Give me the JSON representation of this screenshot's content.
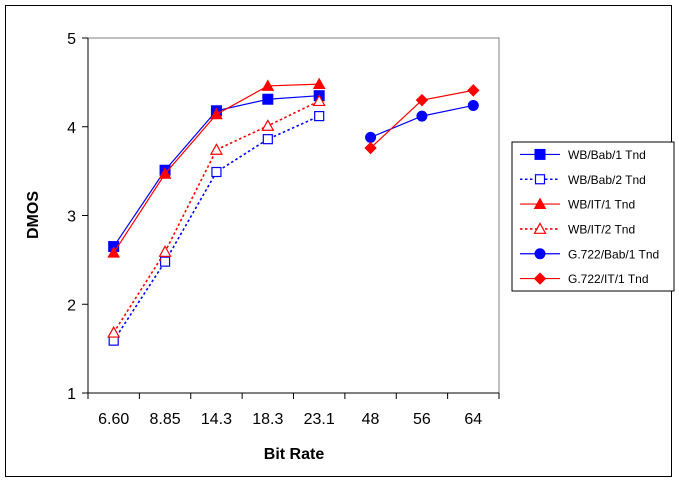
{
  "chart_data": {
    "type": "line",
    "title": "",
    "xlabel": "Bit Rate",
    "ylabel": "DMOS",
    "ylim": [
      1,
      5
    ],
    "yticks": [
      "1",
      "2",
      "3",
      "4",
      "5"
    ],
    "categories": [
      "6.60",
      "8.85",
      "14.3",
      "18.3",
      "23.1",
      "48",
      "56",
      "64"
    ],
    "grid": false,
    "legend_position": "right",
    "series": [
      {
        "name": "WB/Bab/1 Tnd",
        "color": "#0000FF",
        "dash": "solid",
        "marker": "square",
        "filled": true,
        "values": [
          2.65,
          3.51,
          4.18,
          4.31,
          4.35,
          null,
          null,
          null
        ]
      },
      {
        "name": "WB/Bab/2 Tnd",
        "color": "#0000FF",
        "dash": "dotted",
        "marker": "square",
        "filled": false,
        "values": [
          1.59,
          2.48,
          3.49,
          3.86,
          4.12,
          null,
          null,
          null
        ]
      },
      {
        "name": "WB/IT/1 Tnd",
        "color": "#FF0000",
        "dash": "solid",
        "marker": "triangle",
        "filled": true,
        "values": [
          2.58,
          3.47,
          4.14,
          4.46,
          4.48,
          null,
          null,
          null
        ]
      },
      {
        "name": "WB/IT/2 Tnd",
        "color": "#FF0000",
        "dash": "dotted",
        "marker": "triangle",
        "filled": false,
        "values": [
          1.68,
          2.59,
          3.74,
          4.01,
          4.29,
          null,
          null,
          null
        ]
      },
      {
        "name": "G.722/Bab/1 Tnd",
        "color": "#0000FF",
        "dash": "solid",
        "marker": "circle",
        "filled": true,
        "values": [
          null,
          null,
          null,
          null,
          null,
          3.88,
          4.12,
          4.24
        ]
      },
      {
        "name": "G.722/IT/1 Tnd",
        "color": "#FF0000",
        "dash": "solid",
        "marker": "diamond",
        "filled": true,
        "values": [
          null,
          null,
          null,
          null,
          null,
          3.76,
          4.3,
          4.41
        ]
      }
    ]
  }
}
